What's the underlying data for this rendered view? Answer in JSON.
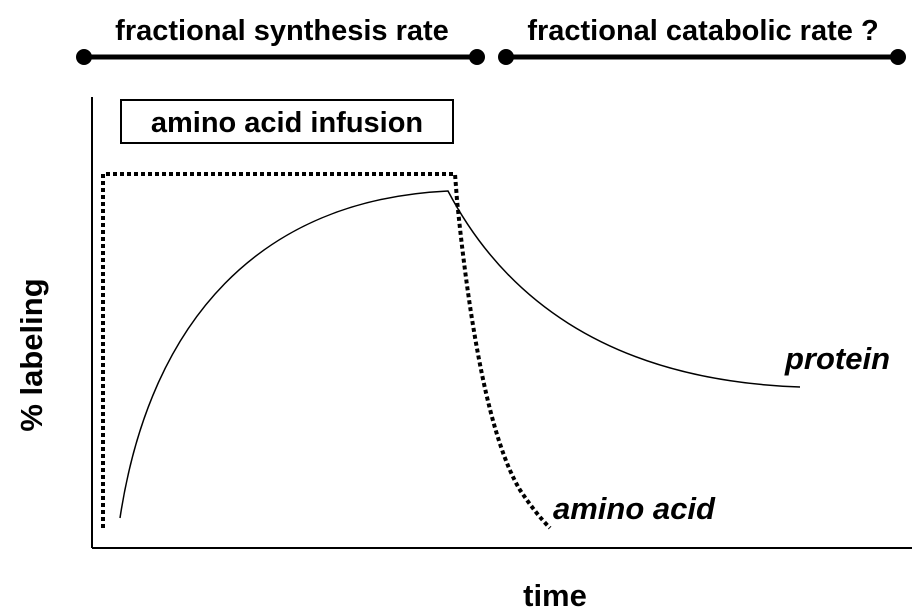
{
  "header": {
    "left": "fractional synthesis rate",
    "right": "fractional catabolic rate ?"
  },
  "box_label": "amino acid infusion",
  "axes": {
    "y_label": "% labeling",
    "x_label": "time"
  },
  "curves": {
    "protein": "protein",
    "amino_acid": "amino acid"
  }
}
